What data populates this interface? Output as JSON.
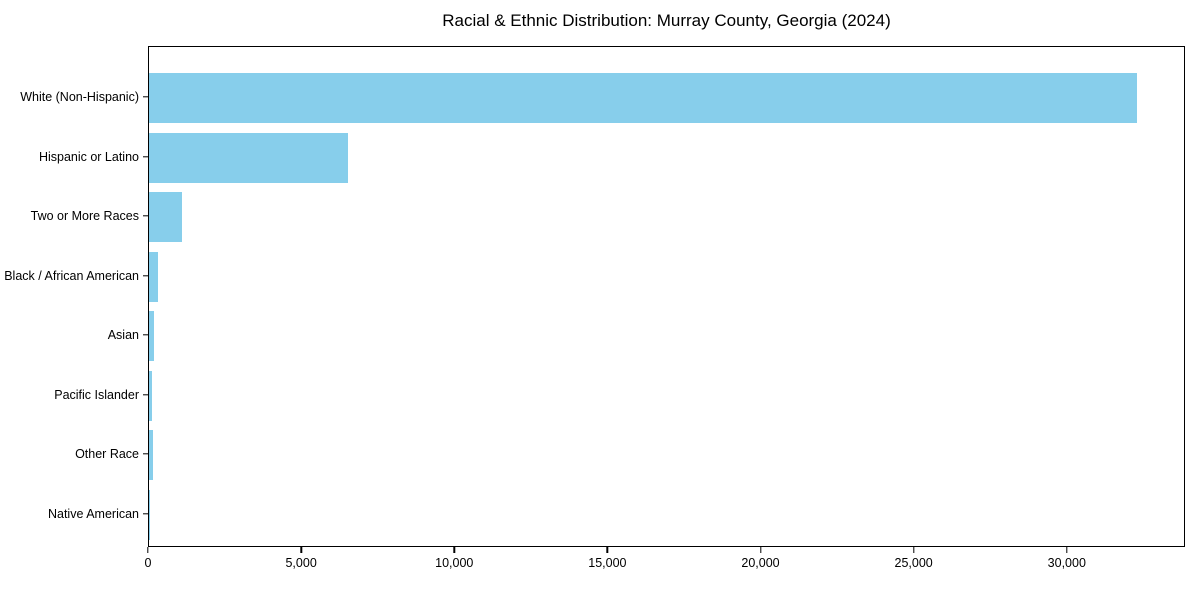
{
  "chart_data": {
    "type": "bar",
    "orientation": "horizontal",
    "title": "Racial & Ethnic Distribution: Murray County, Georgia (2024)",
    "categories": [
      "White (Non-Hispanic)",
      "Hispanic or Latino",
      "Two or More Races",
      "Black / African American",
      "Asian",
      "Pacific Islander",
      "Other Race",
      "Native American"
    ],
    "values": [
      32250,
      6500,
      1080,
      300,
      175,
      110,
      120,
      20
    ],
    "xlabel": "",
    "ylabel": "",
    "xlim": [
      0,
      33860
    ],
    "xticks": [
      0,
      5000,
      10000,
      15000,
      20000,
      25000,
      30000
    ],
    "xtick_labels": [
      "0",
      "5,000",
      "10,000",
      "15,000",
      "20,000",
      "25,000",
      "30,000"
    ],
    "bar_color": "#87CEEB",
    "text_color": "#000000",
    "grid": false,
    "legend": null
  }
}
